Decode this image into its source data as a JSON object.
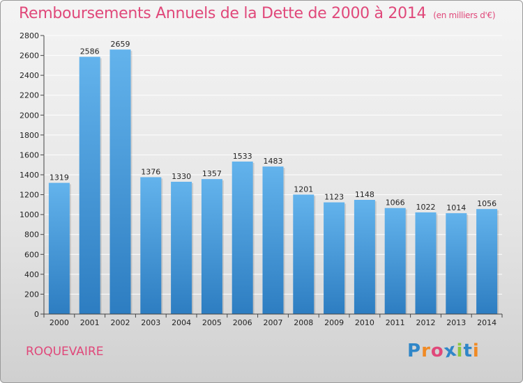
{
  "title": "Remboursements Annuels de la Dette de 2000 à 2014",
  "unit": "(en milliers d'€)",
  "city": "ROQUEVAIRE",
  "logo": {
    "letters": [
      "P",
      "r",
      "o",
      "x",
      "i",
      "t",
      "i"
    ]
  },
  "colors": {
    "title": "#e0487a",
    "bar_top": "#63b3ec",
    "bar_bottom": "#2d7dc1",
    "logo": [
      "#2f86c8",
      "#f08a24",
      "#e0487a",
      "#2f86c8",
      "#8cc63f",
      "#2f86c8",
      "#f08a24"
    ]
  },
  "chart_data": {
    "type": "bar",
    "title": "Remboursements Annuels de la Dette de 2000 à 2014",
    "categories": [
      "2000",
      "2001",
      "2002",
      "2003",
      "2004",
      "2005",
      "2006",
      "2007",
      "2008",
      "2009",
      "2010",
      "2011",
      "2012",
      "2013",
      "2014"
    ],
    "values": [
      1319,
      2586,
      2659,
      1376,
      1330,
      1357,
      1533,
      1483,
      1201,
      1123,
      1148,
      1066,
      1022,
      1014,
      1056
    ],
    "ylim": [
      0,
      2800
    ],
    "yticks": [
      0,
      200,
      400,
      600,
      800,
      1000,
      1200,
      1400,
      1600,
      1800,
      2000,
      2200,
      2400,
      2600,
      2800
    ],
    "grid": true,
    "xlabel": "",
    "ylabel": ""
  }
}
